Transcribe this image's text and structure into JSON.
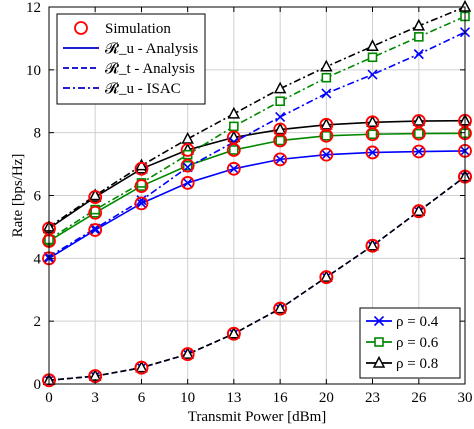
{
  "chart_data": {
    "type": "line",
    "xlabel": "Transmit Power [dBm]",
    "ylabel": "Rate [bps/Hz]",
    "xlim": [
      0,
      30
    ],
    "ylim": [
      0,
      12
    ],
    "xticks": [
      "0",
      "3",
      "6",
      "10",
      "13",
      "16",
      "20",
      "23",
      "26",
      "30"
    ],
    "xtick_values": [
      0,
      3.33,
      6.67,
      10,
      13.33,
      16.67,
      20,
      23.33,
      26.67,
      30
    ],
    "yticks": [
      "0",
      "2",
      "4",
      "6",
      "8",
      "10",
      "12"
    ],
    "ytick_values": [
      0,
      2,
      4,
      6,
      8,
      10,
      12
    ],
    "grid": true,
    "x": [
      0,
      3.33,
      6.67,
      10,
      13.33,
      16.67,
      20,
      23.33,
      26.67,
      30
    ],
    "legend_top": {
      "placement": "top-left",
      "entries": [
        {
          "label": "Simulation",
          "kind": "marker-circle",
          "color": "#ff0000"
        },
        {
          "label": "𝓡_u - Analysis",
          "kind": "solid",
          "color": "#0000cc"
        },
        {
          "label": "𝓡_t - Analysis",
          "kind": "dashed",
          "color": "#0000cc"
        },
        {
          "label": "𝓡_u - ISAC",
          "kind": "dashdot",
          "color": "#0000cc"
        }
      ]
    },
    "legend_bottom": {
      "placement": "bottom-right",
      "entries": [
        {
          "label": "ρ = 0.4",
          "marker": "x",
          "color": "#0000ff"
        },
        {
          "label": "ρ = 0.6",
          "marker": "square",
          "color": "#008800"
        },
        {
          "label": "ρ = 0.8",
          "marker": "triangle",
          "color": "#000000"
        }
      ]
    },
    "series": [
      {
        "group": "analysis",
        "rho": "0.4",
        "style": "solid",
        "color": "#0000ff",
        "marker": "x",
        "values": [
          4.0,
          4.9,
          5.75,
          6.4,
          6.85,
          7.15,
          7.3,
          7.37,
          7.4,
          7.42
        ]
      },
      {
        "group": "analysis",
        "rho": "0.6",
        "style": "solid",
        "color": "#008800",
        "marker": "square",
        "values": [
          4.55,
          5.45,
          6.3,
          6.95,
          7.45,
          7.75,
          7.9,
          7.95,
          7.97,
          7.98
        ]
      },
      {
        "group": "analysis",
        "rho": "0.8",
        "style": "solid",
        "color": "#000000",
        "marker": "triangle",
        "values": [
          4.95,
          5.95,
          6.85,
          7.45,
          7.85,
          8.1,
          8.25,
          8.33,
          8.37,
          8.38
        ]
      },
      {
        "group": "target",
        "rho": "all",
        "style": "dashed",
        "color": "#0000ff",
        "marker": "x",
        "values": [
          0.12,
          0.25,
          0.52,
          0.95,
          1.6,
          2.4,
          3.4,
          4.4,
          5.5,
          6.6
        ]
      },
      {
        "group": "target",
        "rho": "all",
        "style": "dashed",
        "color": "#000000",
        "marker": "triangle",
        "values": [
          0.12,
          0.25,
          0.52,
          0.95,
          1.6,
          2.4,
          3.4,
          4.4,
          5.5,
          6.6
        ]
      },
      {
        "group": "isac",
        "rho": "0.4",
        "style": "dashdot",
        "color": "#0000ff",
        "marker": "x",
        "values": [
          4.05,
          4.95,
          5.85,
          6.9,
          7.7,
          8.5,
          9.25,
          9.85,
          10.5,
          11.2
        ]
      },
      {
        "group": "isac",
        "rho": "0.6",
        "style": "dashdot",
        "color": "#008800",
        "marker": "square",
        "values": [
          4.6,
          5.55,
          6.4,
          7.3,
          8.2,
          9.0,
          9.75,
          10.4,
          11.05,
          11.7
        ]
      },
      {
        "group": "isac",
        "rho": "0.8",
        "style": "dashdot",
        "color": "#000000",
        "marker": "triangle",
        "values": [
          5.0,
          6.0,
          6.95,
          7.8,
          8.6,
          9.4,
          10.1,
          10.75,
          11.4,
          12.0
        ]
      }
    ],
    "simulation_markers": {
      "color": "#ff0000",
      "on_groups": [
        "analysis",
        "target"
      ]
    }
  }
}
